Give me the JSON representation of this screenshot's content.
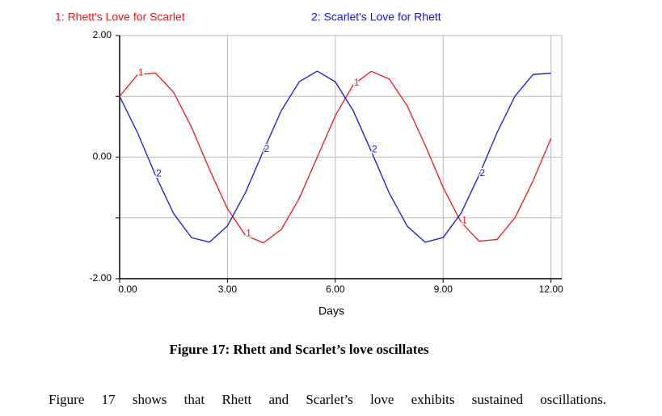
{
  "chart_data": {
    "type": "line",
    "x": [
      0,
      0.5,
      1,
      1.5,
      2,
      2.5,
      3,
      3.5,
      4,
      4.5,
      5,
      5.5,
      6,
      6.5,
      7,
      7.5,
      8,
      8.5,
      9,
      9.5,
      10,
      10.5,
      11,
      11.5,
      12
    ],
    "series": [
      {
        "name": "1: Rhett's Love for Scarlet",
        "marker_label": "1",
        "color": "#e8171c",
        "values": [
          1,
          1.357,
          1.382,
          1.068,
          0.493,
          -0.203,
          -0.849,
          -1.287,
          -1.41,
          -1.189,
          -0.675,
          0.002,
          0.681,
          1.192,
          1.411,
          1.285,
          0.844,
          0.196,
          -0.499,
          -1.072,
          -1.383,
          -1.356,
          -0.996,
          -0.392,
          0.307
        ]
      },
      {
        "name": "2: Scarlet's Love for Rhett",
        "marker_label": "2",
        "color": "#1515d8",
        "values": [
          1,
          0.399,
          -0.301,
          -0.927,
          -1.325,
          -1.399,
          -1.131,
          -0.585,
          0.103,
          0.767,
          1.243,
          1.414,
          1.239,
          0.761,
          0.097,
          -0.591,
          -1.135,
          -1.4,
          -1.323,
          -0.922,
          -0.295,
          0.404,
          1.004,
          1.358,
          1.381
        ]
      }
    ],
    "x_label": "Days",
    "xlim": [
      0,
      12.3
    ],
    "xticks": [
      {
        "value": 0,
        "label": "0.00"
      },
      {
        "value": 3,
        "label": "3.00"
      },
      {
        "value": 6,
        "label": "6.00"
      },
      {
        "value": 9,
        "label": "9.00"
      },
      {
        "value": 12,
        "label": "12.00"
      }
    ],
    "ylim": [
      -2,
      2
    ],
    "yticks": [
      {
        "value": -2,
        "label": "-2.00"
      },
      {
        "value": 0,
        "label": "0.00"
      },
      {
        "value": 2,
        "label": "2.00"
      }
    ],
    "minor_yticks": [
      -1,
      1
    ],
    "grid": true
  },
  "caption": "Figure 17: Rhett and Scarlet’s love oscillates",
  "paragraph": "Figure 17 shows that Rhett and Scarlet’s love exhibits sustained oscillations."
}
